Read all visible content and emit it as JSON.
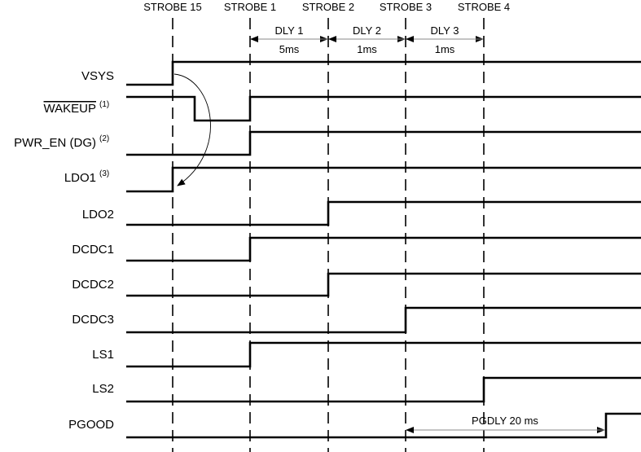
{
  "strobes": [
    {
      "label": "STROBE 15"
    },
    {
      "label": "STROBE 1"
    },
    {
      "label": "STROBE 2"
    },
    {
      "label": "STROBE 3"
    },
    {
      "label": "STROBE 4"
    }
  ],
  "delays": [
    {
      "name": "DLY 1",
      "value": "5ms",
      "from": 1,
      "to": 2
    },
    {
      "name": "DLY 2",
      "value": "1ms",
      "from": 2,
      "to": 3
    },
    {
      "name": "DLY 3",
      "value": "1ms",
      "from": 3,
      "to": 4
    }
  ],
  "pgdly": {
    "label": "PGDLY 20 ms"
  },
  "signals": [
    {
      "name": "VSYS",
      "sup": "",
      "overline": false,
      "edge": "rise",
      "at": 0
    },
    {
      "name": "WAKEUP",
      "sup": "(1)",
      "overline": true,
      "edge": "pulse-low",
      "at": 1
    },
    {
      "name": "PWR_EN (DG)",
      "sup": "(2)",
      "overline": false,
      "edge": "rise",
      "at": 1
    },
    {
      "name": "LDO1",
      "sup": "(3)",
      "overline": false,
      "edge": "rise",
      "at": 0
    },
    {
      "name": "LDO2",
      "sup": "",
      "overline": false,
      "edge": "rise",
      "at": 2
    },
    {
      "name": "DCDC1",
      "sup": "",
      "overline": false,
      "edge": "rise",
      "at": 1
    },
    {
      "name": "DCDC2",
      "sup": "",
      "overline": false,
      "edge": "rise",
      "at": 2
    },
    {
      "name": "DCDC3",
      "sup": "",
      "overline": false,
      "edge": "rise",
      "at": 3
    },
    {
      "name": "LS1",
      "sup": "",
      "overline": false,
      "edge": "rise",
      "at": 1
    },
    {
      "name": "LS2",
      "sup": "",
      "overline": false,
      "edge": "rise",
      "at": 4
    },
    {
      "name": "PGOOD",
      "sup": "",
      "overline": false,
      "edge": "rise",
      "at": "pgdly"
    }
  ]
}
